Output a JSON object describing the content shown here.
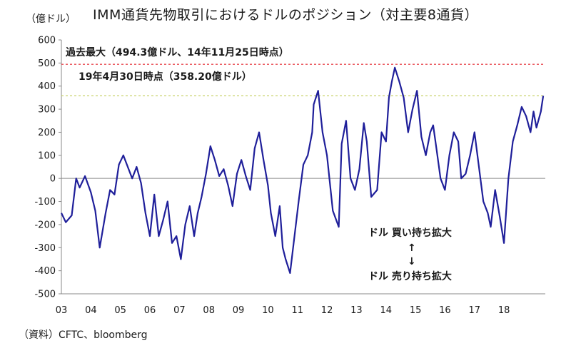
{
  "header": {
    "title": "IMM通貨先物取引におけるドルのポジション（対主要8通貨）",
    "unit": "（億ドル）"
  },
  "footer": {
    "source": "（資料）CFTC、bloomberg"
  },
  "annotations": {
    "max_label": "過去最大（494.3億ドル、14年11月25日時点）",
    "latest_label": "19年4月30日時点（358.20億ドル）",
    "buy_label": "ドル 買い持ち拡大",
    "arrow_up": "↑",
    "arrow_down": "↓",
    "sell_label": "ドル 売り持ち拡大"
  },
  "chart_data": {
    "type": "line",
    "title": "IMM通貨先物取引におけるドルのポジション（対主要8通貨）",
    "ylabel": "億ドル",
    "xlabel": "",
    "ylim": [
      -500,
      600
    ],
    "yticks": [
      -500,
      -400,
      -300,
      -200,
      -100,
      0,
      100,
      200,
      300,
      400,
      500,
      600
    ],
    "xlim": [
      2003.0,
      2019.4
    ],
    "xticks": [
      {
        "label": "03",
        "value": 2003.0
      },
      {
        "label": "04",
        "value": 2004.0
      },
      {
        "label": "05",
        "value": 2005.0
      },
      {
        "label": "06",
        "value": 2006.0
      },
      {
        "label": "07",
        "value": 2007.0
      },
      {
        "label": "08",
        "value": 2008.0
      },
      {
        "label": "09",
        "value": 2009.0
      },
      {
        "label": "10",
        "value": 2010.0
      },
      {
        "label": "11",
        "value": 2011.0
      },
      {
        "label": "12",
        "value": 2012.0
      },
      {
        "label": "13",
        "value": 2013.0
      },
      {
        "label": "14",
        "value": 2014.0
      },
      {
        "label": "15",
        "value": 2015.0
      },
      {
        "label": "16",
        "value": 2016.0
      },
      {
        "label": "17",
        "value": 2017.0
      },
      {
        "label": "18",
        "value": 2018.0
      }
    ],
    "reference_lines": [
      {
        "name": "過去最大",
        "value": 494.3,
        "color": "#e8474f"
      },
      {
        "name": "19年4月30日時点",
        "value": 358.2,
        "color": "#c9d46b"
      }
    ],
    "series": [
      {
        "name": "ドルのポジション",
        "color": "#1f1f9a",
        "x": [
          2003.0,
          2003.15,
          2003.35,
          2003.5,
          2003.62,
          2003.8,
          2004.0,
          2004.15,
          2004.3,
          2004.5,
          2004.65,
          2004.8,
          2004.95,
          2005.1,
          2005.25,
          2005.4,
          2005.55,
          2005.7,
          2005.85,
          2006.0,
          2006.15,
          2006.3,
          2006.45,
          2006.6,
          2006.75,
          2006.9,
          2007.05,
          2007.2,
          2007.35,
          2007.5,
          2007.62,
          2007.75,
          2007.9,
          2008.05,
          2008.2,
          2008.35,
          2008.5,
          2008.65,
          2008.8,
          2008.95,
          2009.1,
          2009.25,
          2009.4,
          2009.55,
          2009.7,
          2009.85,
          2010.0,
          2010.1,
          2010.25,
          2010.4,
          2010.5,
          2010.6,
          2010.75,
          2010.9,
          2011.05,
          2011.2,
          2011.35,
          2011.5,
          2011.55,
          2011.7,
          2011.85,
          2012.0,
          2012.2,
          2012.4,
          2012.5,
          2012.65,
          2012.8,
          2012.95,
          2013.1,
          2013.25,
          2013.35,
          2013.5,
          2013.7,
          2013.85,
          2014.0,
          2014.1,
          2014.2,
          2014.3,
          2014.45,
          2014.6,
          2014.75,
          2014.9,
          2015.05,
          2015.2,
          2015.35,
          2015.5,
          2015.6,
          2015.7,
          2015.85,
          2016.0,
          2016.15,
          2016.3,
          2016.45,
          2016.55,
          2016.7,
          2016.85,
          2017.0,
          2017.15,
          2017.3,
          2017.45,
          2017.55,
          2017.7,
          2017.85,
          2018.0,
          2018.15,
          2018.3,
          2018.45,
          2018.6,
          2018.75,
          2018.9,
          2019.0,
          2019.1,
          2019.25,
          2019.33
        ],
        "values": [
          -150,
          -190,
          -160,
          0,
          -40,
          10,
          -60,
          -140,
          -300,
          -150,
          -50,
          -70,
          60,
          100,
          50,
          0,
          50,
          -20,
          -150,
          -250,
          -70,
          -250,
          -180,
          -100,
          -280,
          -250,
          -350,
          -200,
          -120,
          -250,
          -150,
          -80,
          20,
          140,
          80,
          10,
          40,
          -30,
          -120,
          20,
          80,
          10,
          -50,
          130,
          200,
          80,
          -30,
          -150,
          -250,
          -120,
          -300,
          -350,
          -410,
          -250,
          -90,
          60,
          100,
          200,
          320,
          380,
          200,
          100,
          -140,
          -210,
          150,
          250,
          0,
          -50,
          40,
          240,
          160,
          -80,
          -50,
          200,
          160,
          350,
          420,
          480,
          420,
          350,
          200,
          300,
          380,
          180,
          100,
          200,
          230,
          140,
          0,
          -50,
          100,
          200,
          160,
          0,
          20,
          100,
          200,
          50,
          -100,
          -150,
          -210,
          -50,
          -160,
          -280,
          0,
          160,
          230,
          310,
          270,
          200,
          290,
          220,
          290,
          358
        ]
      }
    ]
  }
}
